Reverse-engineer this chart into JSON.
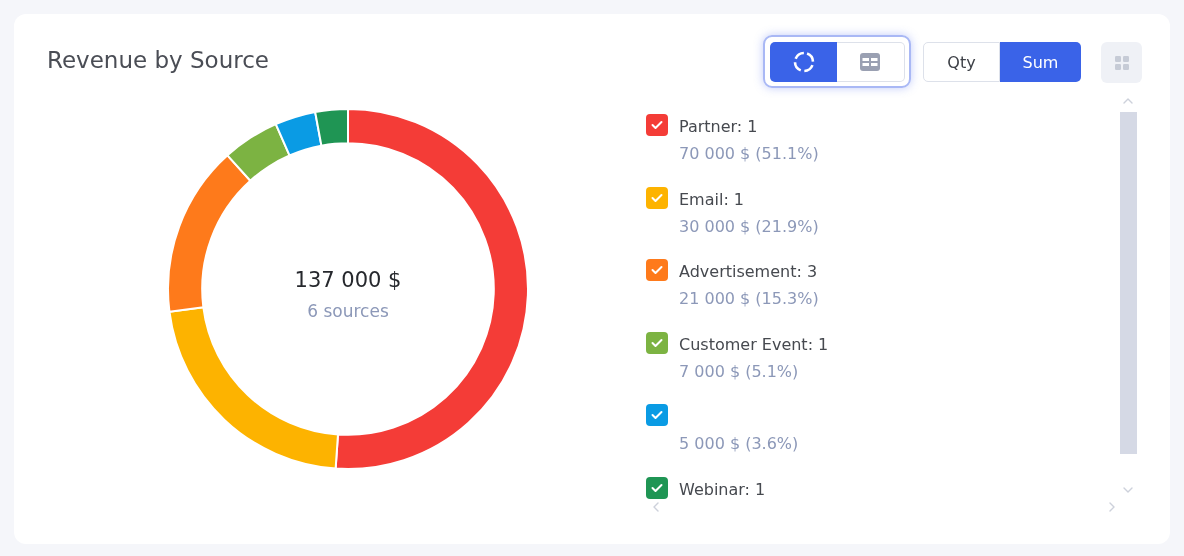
{
  "chart_data": {
    "type": "donut",
    "title": "Revenue by Source",
    "categories": [
      "Partner: 1",
      "Email: 1",
      "Advertisement: 3",
      "Customer Event: 1",
      null,
      "Webinar: 1"
    ],
    "values": [
      70000,
      30000,
      21000,
      7000,
      5000,
      4000
    ],
    "colors": [
      "#f43c37",
      "#fdb300",
      "#fe7a1b",
      "#7cb342",
      "#0a9be4",
      "#1f9554"
    ],
    "value_labels": [
      "70 000 $ (51.1%)",
      "30 000 $ (21.9%)",
      "21 000 $ (15.3%)",
      "7 000 $ (5.1%)",
      null,
      null
    ],
    "legend": "right",
    "annotations": [
      "137 000 $",
      "6 sources",
      "Qty",
      "Sum",
      "5 000 $ (3.6%)"
    ]
  }
}
